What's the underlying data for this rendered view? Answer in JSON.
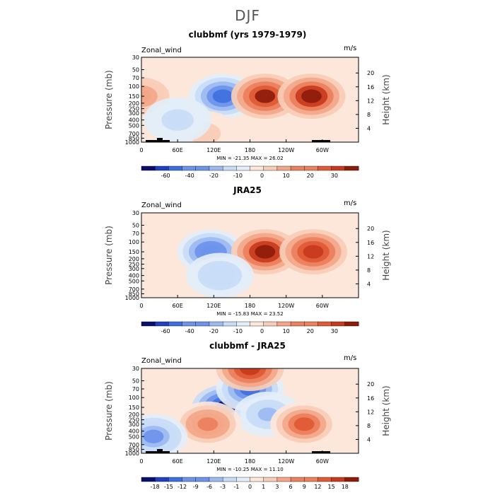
{
  "page_title": "DJF",
  "chart_data": [
    {
      "type": "heatmap",
      "title": "clubbmf (yrs 1979-1979)",
      "left_label": "Zonal_wind",
      "units": "m/s",
      "xlabel": "",
      "ylabel": "Pressure (mb)",
      "ylabel_right": "Height (km)",
      "x_ticks": [
        "0",
        "60E",
        "120E",
        "180",
        "120W",
        "60W"
      ],
      "y_ticks": [
        "30",
        "50",
        "70",
        "100",
        "150",
        "200",
        "250",
        "300",
        "400",
        "500",
        "700",
        "850",
        "1000"
      ],
      "y_right_ticks": [
        "20",
        "16",
        "12",
        "8",
        "4"
      ],
      "min_max_label": "MIN = -21.35   MAX =  26.02",
      "min": -21.35,
      "max": 26.02,
      "colorbar_labels": [
        "-60",
        "-40",
        "-20",
        "-10",
        "0",
        "10",
        "20",
        "30"
      ],
      "features": [
        {
          "lon": 135,
          "p": 150,
          "value": -18
        },
        {
          "lon": 205,
          "p": 150,
          "value": 24
        },
        {
          "lon": 282,
          "p": 150,
          "value": 26
        },
        {
          "lon": 0,
          "p": 150,
          "value": 10
        },
        {
          "lon": 105,
          "p": 700,
          "value": 6
        },
        {
          "lon": 60,
          "p": 400,
          "value": -6
        }
      ]
    },
    {
      "type": "heatmap",
      "title": "JRA25",
      "left_label": "Zonal_wind",
      "units": "m/s",
      "xlabel": "",
      "ylabel": "Pressure (mb)",
      "ylabel_right": "Height (km)",
      "x_ticks": [
        "0",
        "60E",
        "120E",
        "180",
        "120W",
        "60W"
      ],
      "y_ticks": [
        "30",
        "50",
        "70",
        "100",
        "150",
        "200",
        "250",
        "300",
        "400",
        "500",
        "700",
        "850",
        "1000"
      ],
      "y_right_ticks": [
        "20",
        "16",
        "12",
        "8",
        "4"
      ],
      "min_max_label": "MIN = -15.83   MAX =  23.52",
      "min": -15.83,
      "max": 23.52,
      "colorbar_labels": [
        "-60",
        "-40",
        "-20",
        "-10",
        "0",
        "10",
        "20",
        "30"
      ],
      "features": [
        {
          "lon": 115,
          "p": 150,
          "value": -14
        },
        {
          "lon": 205,
          "p": 150,
          "value": 23
        },
        {
          "lon": 285,
          "p": 150,
          "value": 20
        },
        {
          "lon": 130,
          "p": 400,
          "value": -6
        }
      ]
    },
    {
      "type": "heatmap",
      "title": "clubbmf - JRA25",
      "left_label": "Zonal_wind",
      "units": "m/s",
      "xlabel": "",
      "ylabel": "Pressure (mb)",
      "ylabel_right": "Height (km)",
      "x_ticks": [
        "0",
        "60E",
        "120E",
        "180",
        "120W",
        "60W"
      ],
      "y_ticks": [
        "30",
        "50",
        "70",
        "100",
        "150",
        "200",
        "250",
        "300",
        "400",
        "500",
        "700",
        "850",
        "1000"
      ],
      "y_right_ticks": [
        "20",
        "16",
        "12",
        "8",
        "4"
      ],
      "min_max_label": "MIN = -10.25   MAX =  11.10",
      "min": -10.25,
      "max": 11.1,
      "colorbar_labels": [
        "-18",
        "-15",
        "-12",
        "-9",
        "-6",
        "-3",
        "-1",
        "0",
        "1",
        "3",
        "6",
        "9",
        "12",
        "15",
        "18"
      ],
      "features": [
        {
          "lon": 140,
          "p": 150,
          "value": -10
        },
        {
          "lon": 180,
          "p": 70,
          "value": -7
        },
        {
          "lon": 210,
          "p": 200,
          "value": -4
        },
        {
          "lon": 110,
          "p": 300,
          "value": 6
        },
        {
          "lon": 270,
          "p": 300,
          "value": 8
        },
        {
          "lon": 180,
          "p": 30,
          "value": 9
        },
        {
          "lon": 20,
          "p": 500,
          "value": -5
        }
      ]
    }
  ],
  "colors": {
    "neg_scale": [
      "#0a0f6e",
      "#1f3fc4",
      "#3f6fdf",
      "#6b94ea",
      "#9cbaf2",
      "#c9dcf7",
      "#e3eef9"
    ],
    "pos_scale": [
      "#fde6da",
      "#f8cdb7",
      "#f3a788",
      "#ec7f5c",
      "#e05a35",
      "#c8391e",
      "#8f1b0b"
    ],
    "terrain": "#000000"
  }
}
